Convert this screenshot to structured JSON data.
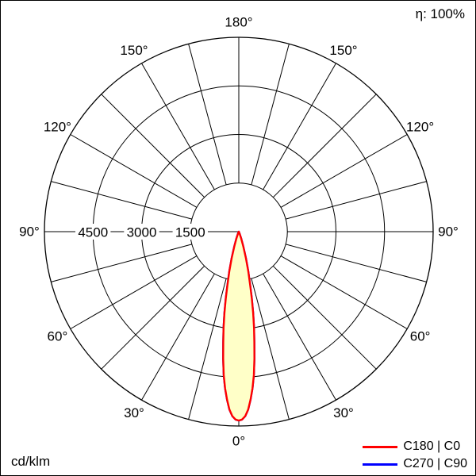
{
  "header": {
    "eta_label": "η: 100%"
  },
  "footer": {
    "unit_label": "cd/klm"
  },
  "legend": [
    {
      "label": "C180 | C0",
      "color": "#ff0000"
    },
    {
      "label": "C270 | C90",
      "color": "#0000ff"
    }
  ],
  "chart_data": {
    "type": "polar",
    "subtype": "luminous-intensity-distribution",
    "unit": "cd/klm",
    "efficiency_label": "η: 100%",
    "max_value": 6000,
    "rings": [
      {
        "value": 1500,
        "label": "1500"
      },
      {
        "value": 3000,
        "label": "3000"
      },
      {
        "value": 4500,
        "label": "4500"
      },
      {
        "value": 6000,
        "label": ""
      }
    ],
    "angle_step_deg": 15,
    "angle_labels_deg": [
      0,
      30,
      60,
      90,
      120,
      150,
      180
    ],
    "gamma_deg": [
      0,
      1,
      2,
      3,
      4,
      5,
      6,
      7,
      8,
      9,
      10,
      11,
      12,
      13.5,
      15,
      17,
      19,
      21,
      23
    ],
    "series": [
      {
        "name": "C270 | C90",
        "color": "#0000ff",
        "fill": "#ffffc8",
        "values": [
          5830,
          5800,
          5700,
          5500,
          5200,
          4850,
          4450,
          3950,
          3450,
          3000,
          2550,
          2100,
          1700,
          1250,
          850,
          480,
          230,
          80,
          0
        ]
      },
      {
        "name": "C180 | C0",
        "color": "#ff0000",
        "fill": "#ffffc8",
        "values": [
          5830,
          5800,
          5700,
          5500,
          5200,
          4850,
          4450,
          3950,
          3450,
          3000,
          2550,
          2100,
          1700,
          1250,
          850,
          480,
          230,
          80,
          0
        ]
      }
    ],
    "grid": true,
    "legend_position": "bottom-right"
  }
}
